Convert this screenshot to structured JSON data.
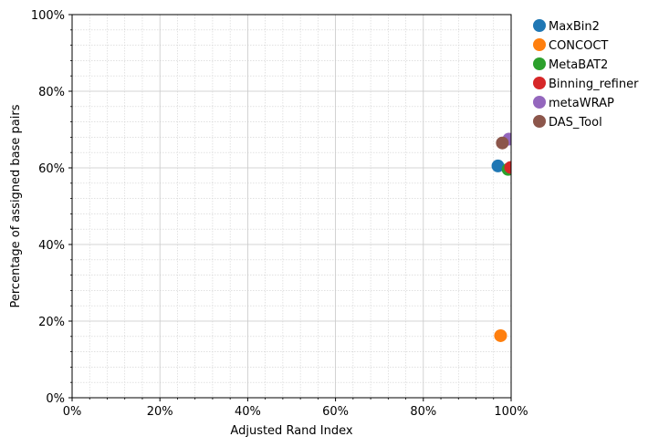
{
  "chart_data": {
    "type": "scatter",
    "title": "",
    "xlabel": "Adjusted Rand Index",
    "ylabel": "Percentage of assigned base pairs",
    "xlim": [
      0,
      1
    ],
    "ylim": [
      0,
      1
    ],
    "x_ticks": [
      0,
      0.2,
      0.4,
      0.6,
      0.8,
      1.0
    ],
    "y_ticks": [
      0,
      0.2,
      0.4,
      0.6,
      0.8,
      1.0
    ],
    "x_tick_labels": [
      "0%",
      "20%",
      "40%",
      "60%",
      "80%",
      "100%"
    ],
    "y_tick_labels": [
      "0%",
      "20%",
      "40%",
      "60%",
      "80%",
      "100%"
    ],
    "grid": true,
    "minor_grid": true,
    "legend_position": "outside-right-top",
    "series": [
      {
        "name": "MaxBin2",
        "color": "#1f77b4",
        "x": 0.97,
        "y": 0.605
      },
      {
        "name": "CONCOCT",
        "color": "#ff7f0e",
        "x": 0.976,
        "y": 0.162
      },
      {
        "name": "MetaBAT2",
        "color": "#2ca02c",
        "x": 0.993,
        "y": 0.596
      },
      {
        "name": "Binning_refiner",
        "color": "#d62728",
        "x": 0.999,
        "y": 0.601
      },
      {
        "name": "metaWRAP",
        "color": "#9467bd",
        "x": 0.995,
        "y": 0.675
      },
      {
        "name": "DAS_Tool",
        "color": "#8c564b",
        "x": 0.98,
        "y": 0.665
      }
    ]
  }
}
